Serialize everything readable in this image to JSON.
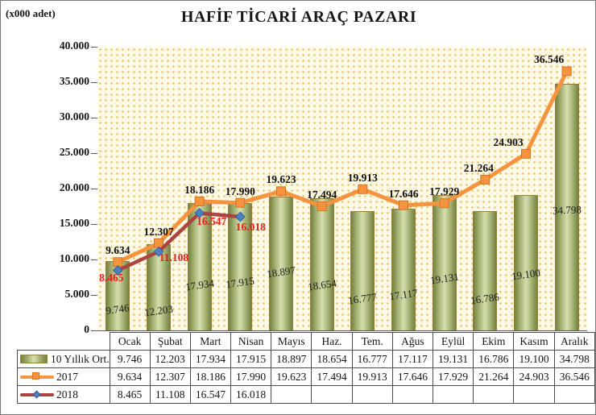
{
  "title": "HAFİF TİCARİ ARAÇ PAZARI",
  "units_label": "(x000 adet)",
  "chart_data": {
    "type": "bar",
    "combo": "bars with two overlay line series",
    "title": "HAFİF TİCARİ ARAÇ PAZARI",
    "ylabel": "(x000 adet)",
    "ylim": [
      0,
      40000
    ],
    "ytick_step": 5000,
    "grid": false,
    "legend_position": "bottom-table",
    "value_format": "thousands-dot",
    "categories": [
      "Ocak",
      "Şubat",
      "Mart",
      "Nisan",
      "Mayıs",
      "Haz.",
      "Tem.",
      "Ağus",
      "Eylül",
      "Ekim",
      "Kasım",
      "Aralık"
    ],
    "series": [
      {
        "name": "10 Yıllık Ort.",
        "type": "bar",
        "values": [
          9746,
          12203,
          17934,
          17915,
          18897,
          18654,
          16777,
          17117,
          19131,
          16786,
          19100,
          34798
        ]
      },
      {
        "name": "2017",
        "type": "line",
        "values": [
          9634,
          12307,
          18186,
          17990,
          19623,
          17494,
          19913,
          17646,
          17929,
          21264,
          24903,
          36546
        ]
      },
      {
        "name": "2018",
        "type": "line",
        "values": [
          8465,
          11108,
          16547,
          16018
        ]
      }
    ]
  },
  "colors": {
    "bar_edge": "#76813f",
    "bar_center": "#d6dfae",
    "bar_border": "#97803d",
    "line_2017": "#f5933f",
    "marker_2017_border": "#d2751f",
    "line_2018": "#ad4341",
    "marker_2018": "#4f81bd",
    "marker_2018_border": "#2e5f9e",
    "label_2018_text": "#ee1c1c",
    "axis": "#595959",
    "plot_bg": "#fdf9e6",
    "plot_dot": "#e2bd4e"
  }
}
